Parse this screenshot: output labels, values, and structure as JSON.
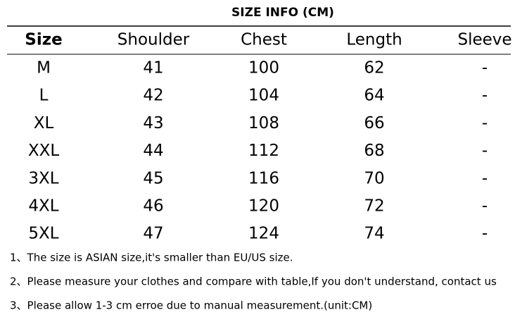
{
  "title": "SIZE INFO (CM)",
  "table": {
    "header": [
      "Size",
      "Shoulder",
      "Chest",
      "Length",
      "Sleeve"
    ],
    "rows": [
      [
        "M",
        "41",
        "100",
        "62",
        "-"
      ],
      [
        "L",
        "42",
        "104",
        "64",
        "-"
      ],
      [
        "XL",
        "43",
        "108",
        "66",
        "-"
      ],
      [
        "XXL",
        "44",
        "112",
        "68",
        "-"
      ],
      [
        "3XL",
        "45",
        "116",
        "70",
        "-"
      ],
      [
        "4XL",
        "46",
        "120",
        "72",
        "-"
      ],
      [
        "5XL",
        "47",
        "124",
        "74",
        "-"
      ]
    ]
  },
  "notes": [
    "1、The size is ASIAN size,it's smaller than EU/US size.",
    "2、Please measure your clothes and compare with table,If you don't understand, contact us",
    "3、Please allow 1-3 cm erroe due to manual measurement.(unit:CM)"
  ]
}
